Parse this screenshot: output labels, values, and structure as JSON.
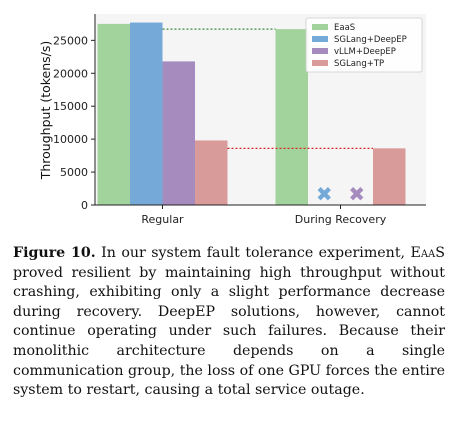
{
  "chart_data": {
    "type": "bar",
    "categories": [
      "Regular",
      "During Recovery"
    ],
    "ylabel": "Throughput (tokens/s)",
    "ylim": [
      0,
      29000
    ],
    "yticks": [
      0,
      5000,
      10000,
      15000,
      20000,
      25000
    ],
    "grid": false,
    "legend_position": "top-right",
    "series": [
      {
        "name": "EaaS",
        "color": "#a3d39c",
        "values": [
          27500,
          26700
        ]
      },
      {
        "name": "SGLang+DeepEP",
        "color": "#74a9d8",
        "values": [
          27700,
          null
        ]
      },
      {
        "name": "vLLM+DeepEP",
        "color": "#a68bbf",
        "values": [
          21800,
          null
        ]
      },
      {
        "name": "SGLang+TP",
        "color": "#d99a9a",
        "values": [
          9800,
          8600
        ]
      }
    ],
    "failure_markers": [
      {
        "series": "SGLang+DeepEP",
        "category": "During Recovery",
        "symbol": "✖",
        "color": "#74a9d8"
      },
      {
        "series": "vLLM+DeepEP",
        "category": "During Recovery",
        "symbol": "✖",
        "color": "#a68bbf"
      }
    ],
    "reference_lines": [
      {
        "series": "EaaS",
        "color": "#3a8a3a"
      },
      {
        "series": "SGLang+TP",
        "color": "#d62728"
      }
    ]
  },
  "caption": {
    "label": "Figure 10.",
    "text_before_name": " In our system fault tolerance experiment, ",
    "system_name": "EaaS",
    "text_after_name": " proved resilient by maintaining high throughput without crashing, exhibiting only a slight performance decrease during recovery. DeepEP solutions, however, cannot continue operating under such failures. Because their monolithic architecture depends on a single communication group, the loss of one GPU forces the entire system to restart, causing a total service outage."
  }
}
